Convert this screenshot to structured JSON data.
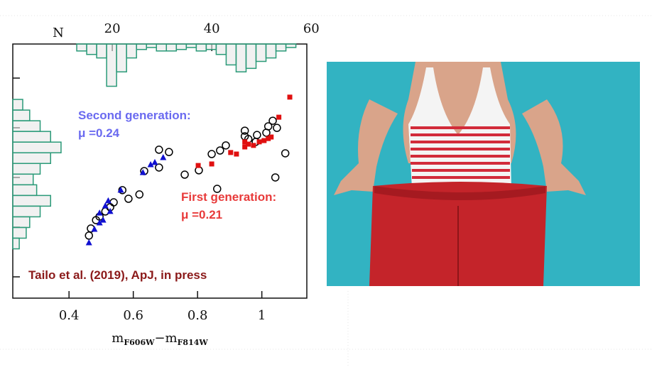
{
  "chart_data": {
    "type": "scatter",
    "xlabel": [
      "m",
      "F606W",
      "−m",
      "F814W"
    ],
    "xlim": [
      0.225,
      1.14
    ],
    "xticks": [
      {
        "value": 0.4,
        "label": "0.4"
      },
      {
        "value": 0.6,
        "label": "0.6"
      },
      {
        "value": 0.8,
        "label": "0.8"
      },
      1
    ],
    "ylim": [
      0,
      10
    ],
    "x2label": "N",
    "x2lim": [
      0,
      59.1
    ],
    "x2ticks": [
      20,
      40,
      60
    ],
    "series": [
      {
        "marker": "circle",
        "color": "#000000",
        "x": [
          0.462,
          0.468,
          0.484,
          0.495,
          0.513,
          0.528,
          0.539,
          0.566,
          0.585,
          0.619,
          0.634,
          0.68,
          0.711,
          0.68,
          0.76,
          0.804,
          0.844,
          0.87,
          0.888,
          0.947,
          0.947,
          0.958,
          0.981,
          0.985,
          1.014,
          1.02,
          1.034,
          1.047,
          1.073,
          1.042,
          0.861
        ],
        "values": [
          2.46,
          2.74,
          3.07,
          3.21,
          3.41,
          3.58,
          3.77,
          4.25,
          3.91,
          4.08,
          5.0,
          5.84,
          5.75,
          5.14,
          4.86,
          5.03,
          5.67,
          5.81,
          6.01,
          6.59,
          6.37,
          6.26,
          6.15,
          6.42,
          6.51,
          6.76,
          6.98,
          6.7,
          5.7,
          4.75,
          4.3
        ]
      },
      {
        "marker": "triangle",
        "color": "#1010d0",
        "x": [
          0.462,
          0.479,
          0.495,
          0.513,
          0.522,
          0.528,
          0.506,
          0.561,
          0.63,
          0.654,
          0.667,
          0.693,
          0.495
        ],
        "values": [
          2.18,
          2.71,
          3.35,
          3.63,
          3.83,
          3.41,
          3.07,
          4.25,
          4.94,
          5.25,
          5.34,
          5.53,
          2.96
        ]
      },
      {
        "marker": "square",
        "color": "#e01010",
        "x": [
          0.802,
          0.844,
          0.903,
          0.921,
          0.947,
          0.958,
          0.974,
          0.992,
          1.007,
          1.029,
          1.02,
          1.053,
          1.087,
          0.947
        ],
        "values": [
          5.22,
          5.28,
          5.73,
          5.67,
          5.95,
          6.06,
          6.01,
          6.15,
          6.2,
          6.34,
          6.28,
          7.12,
          7.91,
          6.15
        ]
      }
    ],
    "histograms": [
      {
        "axis": "x",
        "color": "#2a9a78",
        "bins": [
          0.424,
          0.455,
          0.486,
          0.517,
          0.548,
          0.579,
          0.61,
          0.641,
          0.672,
          0.703,
          0.734,
          0.765,
          0.796,
          0.827,
          0.858,
          0.889,
          0.92,
          0.951,
          0.982,
          1.013,
          1.044,
          1.075,
          1.106
        ],
        "counts": [
          1.4,
          2.1,
          2.8,
          8.5,
          5.6,
          2.8,
          1.1,
          0.7,
          1.4,
          1.4,
          1.1,
          0.7,
          1.4,
          1.1,
          2.1,
          4.2,
          5.6,
          4.9,
          3.5,
          2.8,
          1.4,
          0.7
        ]
      },
      {
        "axis": "y",
        "color": "#2a9a78",
        "bins": [
          7.82,
          7.4,
          6.98,
          6.56,
          6.14,
          5.72,
          5.3,
          4.88,
          4.46,
          4.04,
          3.62,
          3.2,
          2.78,
          2.36,
          1.94
        ],
        "counts": [
          2.0,
          3.4,
          5.5,
          7.6,
          9.7,
          7.6,
          5.5,
          4.1,
          4.8,
          7.6,
          5.5,
          3.4,
          2.7,
          1.3
        ]
      }
    ],
    "annotations": [
      {
        "lines": [
          "Second generation:",
          "μ =0.24"
        ],
        "color": "#6a6af0"
      },
      {
        "lines": [
          "First generation:",
          "μ =0.21"
        ],
        "color": "#e83a3a"
      },
      {
        "lines": [
          "Tailo et al. (2019), ApJ, in press"
        ],
        "color": "#8b1a1a"
      }
    ]
  }
}
